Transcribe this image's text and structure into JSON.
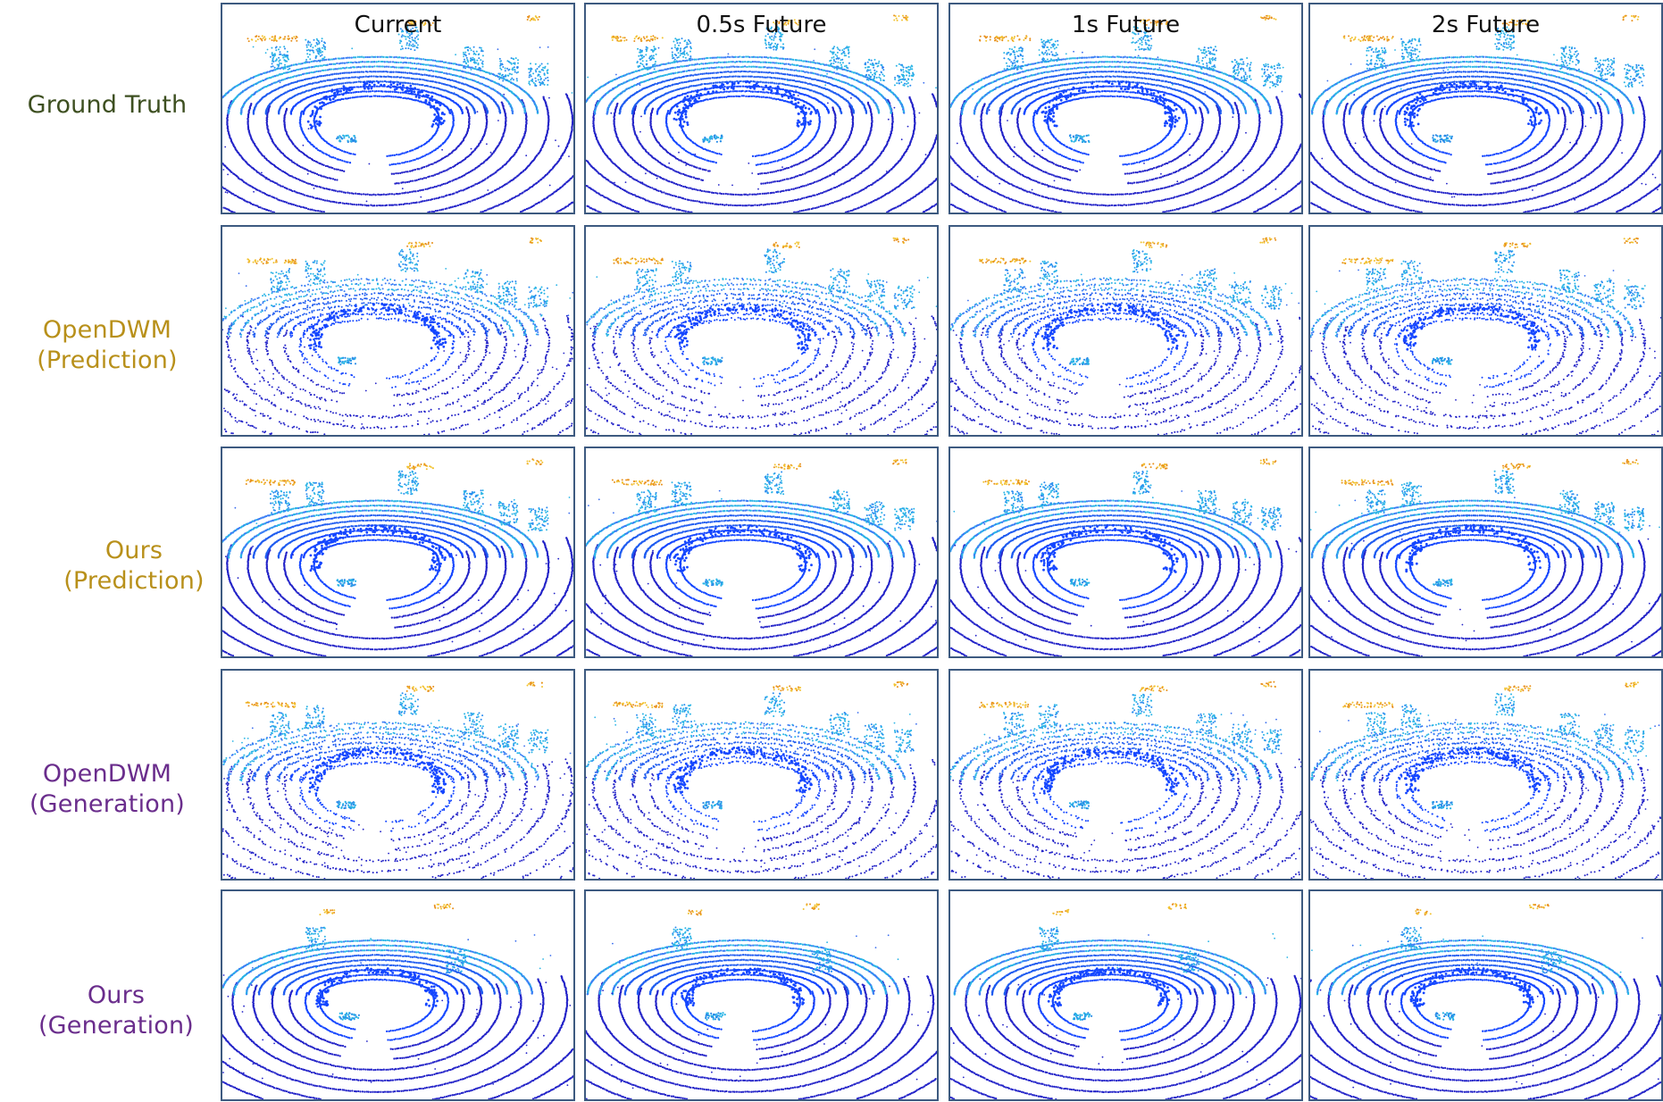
{
  "figure": {
    "columns": [
      {
        "label": "Current"
      },
      {
        "label": "0.5s Future"
      },
      {
        "label": "1s Future"
      },
      {
        "label": "2s Future"
      }
    ],
    "rows": [
      {
        "line1": "Ground Truth",
        "line2": "",
        "color": "#3d4f20",
        "style": "gt"
      },
      {
        "line1": "OpenDWM",
        "line2": "(Prediction)",
        "color": "#b8901a",
        "style": "sparse"
      },
      {
        "line1": "Ours",
        "line2": "(Prediction)",
        "color": "#b8901a",
        "style": "gt"
      },
      {
        "line1": "OpenDWM",
        "line2": "(Generation)",
        "color": "#6a2d8c",
        "style": "sparse"
      },
      {
        "line1": "Ours",
        "line2": "(Generation)",
        "color": "#6a2d8c",
        "style": "compact"
      }
    ],
    "colormap": {
      "ground_dark": "#2323c8",
      "ground_blue": "#1446ff",
      "mid_cyan": "#2ab4e6",
      "high_yellow": "#f2c230",
      "high_orange": "#e8901c"
    },
    "panel_border": "#3d5a80"
  }
}
